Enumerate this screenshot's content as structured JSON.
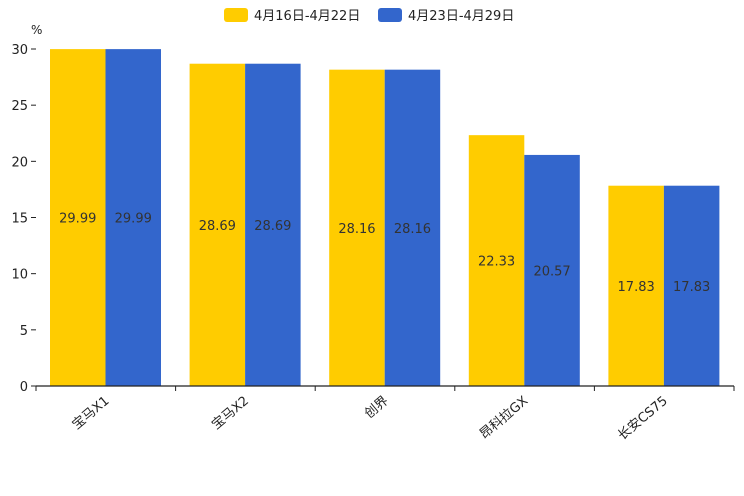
{
  "chart_data": {
    "type": "bar",
    "ylabel": "%",
    "ylim": [
      0,
      30
    ],
    "yticks": [
      0,
      5,
      10,
      15,
      20,
      25,
      30
    ],
    "categories": [
      "宝马X1",
      "宝马X2",
      "创界",
      "昂科拉GX",
      "长安CS75"
    ],
    "series": [
      {
        "name": "4月16日-4月22日",
        "color": "#FFCC00",
        "values": [
          29.99,
          28.69,
          28.16,
          22.33,
          17.83
        ]
      },
      {
        "name": "4月23日-4月29日",
        "color": "#3366CC",
        "values": [
          29.99,
          28.69,
          28.16,
          20.57,
          17.83
        ]
      }
    ],
    "legend_position": "top-center",
    "grid": false
  }
}
